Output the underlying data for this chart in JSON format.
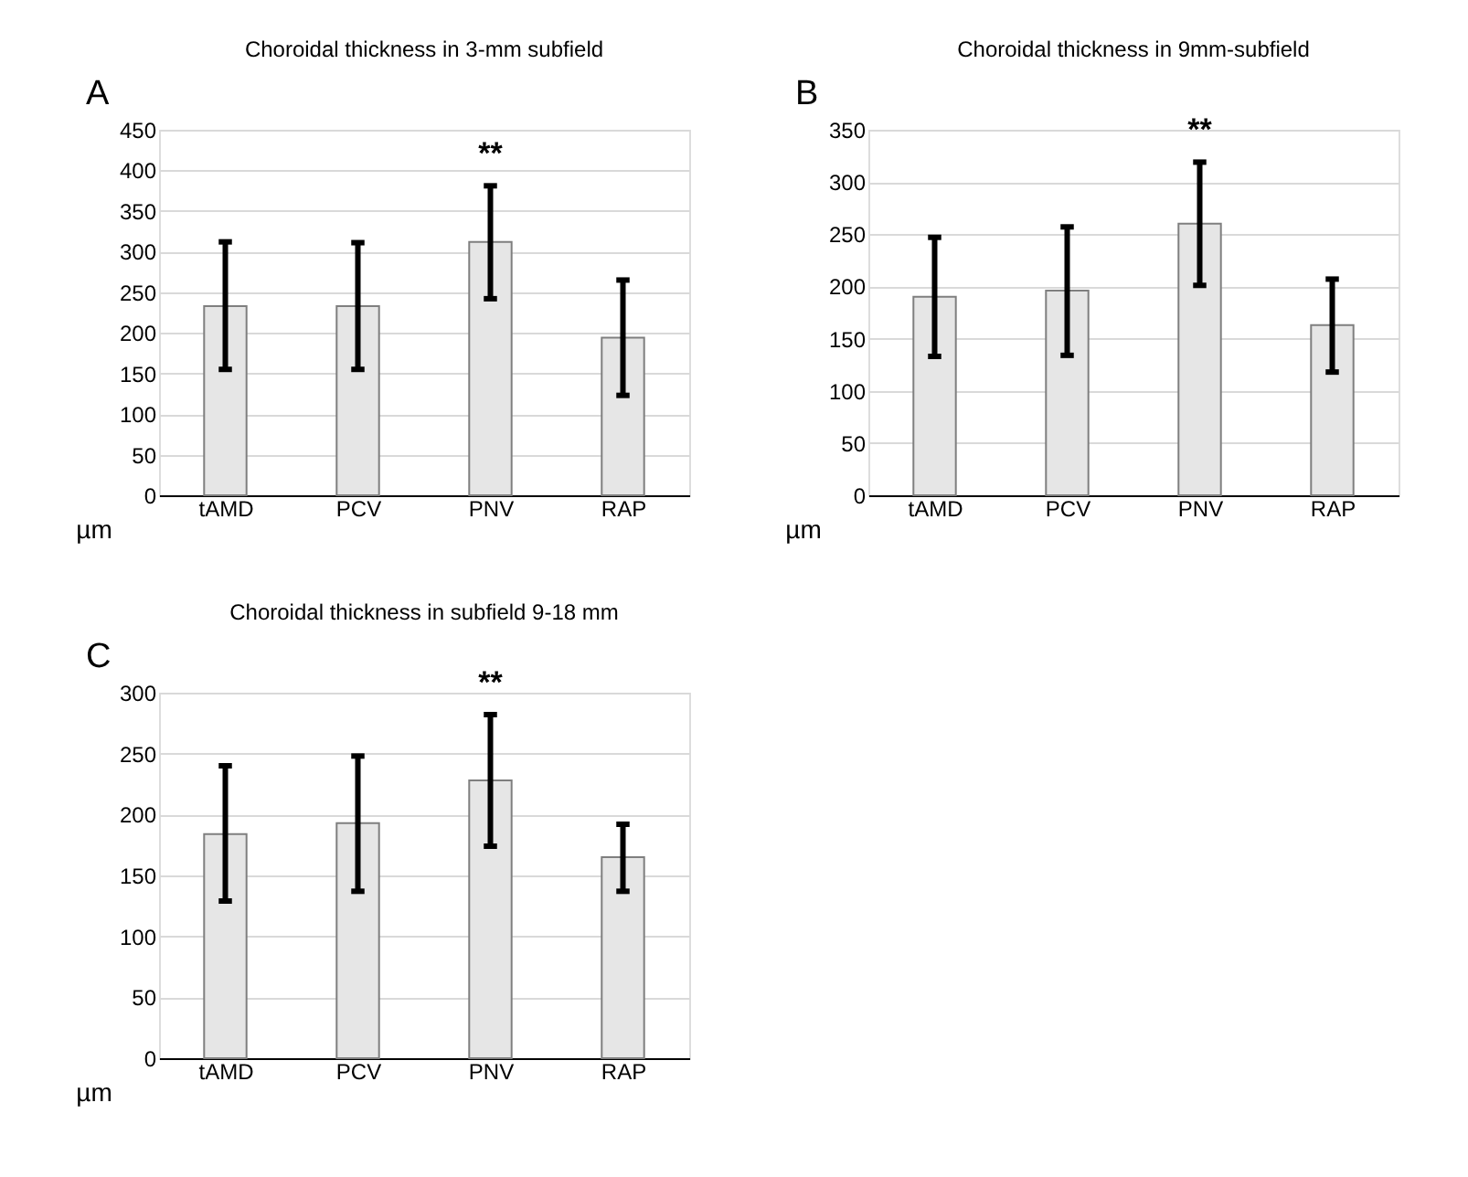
{
  "chart_data": [
    {
      "type": "bar",
      "title": "Choroidal thickness in 3-mm subfield",
      "ylabel": "µm",
      "categories": [
        "tAMD",
        "PCV",
        "PNV",
        "RAP"
      ],
      "values": [
        233,
        233,
        312,
        194
      ],
      "errors": [
        [
          155,
          312
        ],
        [
          155,
          311
        ],
        [
          242,
          381
        ],
        [
          123,
          265
        ]
      ],
      "color": "#e6e6e6",
      "ylim": [
        0,
        450
      ],
      "yticks": [
        0,
        50,
        100,
        150,
        200,
        250,
        300,
        350,
        400,
        450
      ],
      "grid": "y",
      "annotations": [
        "A",
        "**"
      ]
    },
    {
      "type": "bar",
      "title": "Choroidal thickness in 9mm-subfield",
      "ylabel": "µm",
      "categories": [
        "tAMD",
        "PCV",
        "PNV",
        "RAP"
      ],
      "values": [
        190,
        196,
        260,
        163
      ],
      "errors": [
        [
          133,
          247
        ],
        [
          134,
          257
        ],
        [
          201,
          319
        ],
        [
          118,
          207
        ]
      ],
      "color": "#e6e6e6",
      "ylim": [
        0,
        350
      ],
      "yticks": [
        0,
        50,
        100,
        150,
        200,
        250,
        300,
        350
      ],
      "grid": "y",
      "annotations": [
        "B",
        "**"
      ]
    },
    {
      "type": "bar",
      "title": "Choroidal thickness in subfield 9-18 mm",
      "ylabel": "µm",
      "categories": [
        "tAMD",
        "PCV",
        "PNV",
        "RAP"
      ],
      "values": [
        184,
        193,
        228,
        165
      ],
      "errors": [
        [
          129,
          240
        ],
        [
          137,
          248
        ],
        [
          174,
          282
        ],
        [
          137,
          192
        ]
      ],
      "color": "#e6e6e6",
      "ylim": [
        0,
        300
      ],
      "yticks": [
        0,
        50,
        100,
        150,
        200,
        250,
        300
      ],
      "grid": "y",
      "annotations": [
        "C",
        "**"
      ]
    }
  ]
}
